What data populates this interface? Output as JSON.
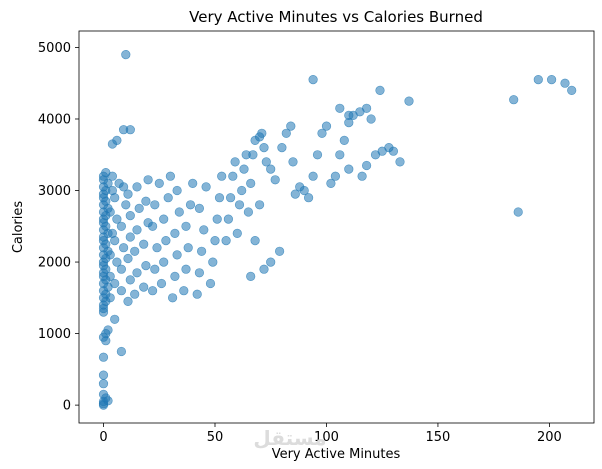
{
  "chart_data": {
    "type": "scatter",
    "title": "Very Active Minutes vs Calories Burned",
    "xlabel": "Very Active Minutes",
    "ylabel": "Calories",
    "xlim": [
      -11,
      220
    ],
    "ylim": [
      -250,
      5230
    ],
    "xticks": [
      0,
      50,
      100,
      150,
      200
    ],
    "yticks": [
      0,
      1000,
      2000,
      3000,
      4000,
      5000
    ],
    "grid": false,
    "marker_color": "#1f77b4",
    "marker_alpha": 0.55,
    "watermark": "مستقل",
    "points": [
      [
        0,
        0
      ],
      [
        0,
        20
      ],
      [
        0,
        50
      ],
      [
        1,
        100
      ],
      [
        0,
        150
      ],
      [
        2,
        60
      ],
      [
        0,
        300
      ],
      [
        0,
        420
      ],
      [
        0,
        670
      ],
      [
        1,
        900
      ],
      [
        0,
        950
      ],
      [
        1,
        1000
      ],
      [
        2,
        1050
      ],
      [
        8,
        750
      ],
      [
        5,
        1200
      ],
      [
        0,
        1300
      ],
      [
        0,
        1350
      ],
      [
        0,
        1400
      ],
      [
        1,
        1450
      ],
      [
        0,
        1500
      ],
      [
        1,
        1550
      ],
      [
        0,
        1600
      ],
      [
        2,
        1650
      ],
      [
        0,
        1700
      ],
      [
        1,
        1750
      ],
      [
        0,
        1800
      ],
      [
        0,
        1850
      ],
      [
        1,
        1900
      ],
      [
        0,
        1950
      ],
      [
        0,
        2000
      ],
      [
        1,
        2050
      ],
      [
        0,
        2100
      ],
      [
        2,
        2150
      ],
      [
        0,
        2200
      ],
      [
        1,
        2250
      ],
      [
        0,
        2300
      ],
      [
        0,
        2350
      ],
      [
        2,
        2400
      ],
      [
        0,
        2450
      ],
      [
        1,
        2500
      ],
      [
        0,
        2550
      ],
      [
        0,
        2600
      ],
      [
        1,
        2650
      ],
      [
        0,
        2700
      ],
      [
        2,
        2750
      ],
      [
        0,
        2800
      ],
      [
        1,
        2850
      ],
      [
        0,
        2900
      ],
      [
        0,
        2950
      ],
      [
        1,
        3000
      ],
      [
        0,
        3050
      ],
      [
        2,
        3100
      ],
      [
        0,
        3150
      ],
      [
        0,
        3200
      ],
      [
        1,
        3250
      ],
      [
        3,
        1500
      ],
      [
        3,
        1800
      ],
      [
        3,
        2100
      ],
      [
        4,
        2400
      ],
      [
        3,
        2700
      ],
      [
        4,
        3000
      ],
      [
        5,
        1700
      ],
      [
        6,
        2000
      ],
      [
        5,
        2300
      ],
      [
        6,
        2600
      ],
      [
        5,
        2900
      ],
      [
        7,
        3100
      ],
      [
        4,
        3200
      ],
      [
        8,
        1600
      ],
      [
        8,
        1900
      ],
      [
        9,
        2200
      ],
      [
        8,
        2500
      ],
      [
        10,
        2800
      ],
      [
        9,
        3050
      ],
      [
        11,
        1450
      ],
      [
        12,
        1750
      ],
      [
        11,
        2050
      ],
      [
        12,
        2350
      ],
      [
        12,
        2650
      ],
      [
        11,
        2950
      ],
      [
        14,
        1550
      ],
      [
        15,
        1850
      ],
      [
        14,
        2150
      ],
      [
        15,
        2450
      ],
      [
        16,
        2750
      ],
      [
        15,
        3050
      ],
      [
        18,
        1650
      ],
      [
        19,
        1950
      ],
      [
        18,
        2250
      ],
      [
        20,
        2550
      ],
      [
        19,
        2850
      ],
      [
        20,
        3150
      ],
      [
        22,
        1600
      ],
      [
        23,
        1900
      ],
      [
        24,
        2200
      ],
      [
        22,
        2500
      ],
      [
        23,
        2800
      ],
      [
        25,
        3100
      ],
      [
        26,
        1700
      ],
      [
        27,
        2000
      ],
      [
        28,
        2300
      ],
      [
        27,
        2600
      ],
      [
        29,
        2900
      ],
      [
        30,
        3200
      ],
      [
        31,
        1500
      ],
      [
        32,
        1800
      ],
      [
        33,
        2100
      ],
      [
        32,
        2400
      ],
      [
        34,
        2700
      ],
      [
        33,
        3000
      ],
      [
        36,
        1600
      ],
      [
        37,
        1900
      ],
      [
        38,
        2200
      ],
      [
        37,
        2500
      ],
      [
        39,
        2800
      ],
      [
        40,
        3100
      ],
      [
        42,
        1550
      ],
      [
        43,
        1850
      ],
      [
        44,
        2150
      ],
      [
        45,
        2450
      ],
      [
        43,
        2750
      ],
      [
        46,
        3050
      ],
      [
        48,
        1700
      ],
      [
        49,
        2000
      ],
      [
        50,
        2300
      ],
      [
        51,
        2600
      ],
      [
        52,
        2900
      ],
      [
        53,
        3200
      ],
      [
        55,
        2300
      ],
      [
        56,
        2600
      ],
      [
        57,
        2900
      ],
      [
        58,
        3200
      ],
      [
        59,
        3400
      ],
      [
        60,
        2400
      ],
      [
        61,
        2800
      ],
      [
        62,
        3000
      ],
      [
        63,
        3300
      ],
      [
        64,
        3500
      ],
      [
        65,
        2700
      ],
      [
        66,
        3100
      ],
      [
        67,
        3500
      ],
      [
        68,
        3700
      ],
      [
        70,
        3750
      ],
      [
        71,
        3800
      ],
      [
        72,
        3600
      ],
      [
        68,
        2300
      ],
      [
        70,
        2800
      ],
      [
        73,
        3400
      ],
      [
        75,
        3300
      ],
      [
        66,
        1800
      ],
      [
        72,
        1900
      ],
      [
        75,
        2000
      ],
      [
        79,
        2150
      ],
      [
        77,
        3150
      ],
      [
        80,
        3600
      ],
      [
        82,
        3800
      ],
      [
        84,
        3900
      ],
      [
        86,
        2950
      ],
      [
        88,
        3050
      ],
      [
        85,
        3400
      ],
      [
        90,
        3000
      ],
      [
        92,
        2900
      ],
      [
        94,
        3200
      ],
      [
        96,
        3500
      ],
      [
        98,
        3800
      ],
      [
        100,
        3900
      ],
      [
        102,
        3100
      ],
      [
        104,
        3200
      ],
      [
        106,
        3500
      ],
      [
        108,
        3700
      ],
      [
        110,
        3950
      ],
      [
        112,
        4050
      ],
      [
        115,
        4100
      ],
      [
        118,
        4150
      ],
      [
        120,
        4000
      ],
      [
        110,
        3300
      ],
      [
        116,
        3200
      ],
      [
        118,
        3350
      ],
      [
        122,
        3500
      ],
      [
        125,
        3550
      ],
      [
        128,
        3600
      ],
      [
        130,
        3550
      ],
      [
        133,
        3400
      ],
      [
        124,
        4400
      ],
      [
        137,
        4250
      ],
      [
        94,
        4550
      ],
      [
        110,
        4050
      ],
      [
        106,
        4150
      ],
      [
        12,
        3850
      ],
      [
        9,
        3850
      ],
      [
        6,
        3700
      ],
      [
        4,
        3650
      ],
      [
        10,
        4900
      ],
      [
        184,
        4270
      ],
      [
        186,
        2700
      ],
      [
        195,
        4550
      ],
      [
        201,
        4550
      ],
      [
        207,
        4500
      ],
      [
        210,
        4400
      ]
    ]
  }
}
